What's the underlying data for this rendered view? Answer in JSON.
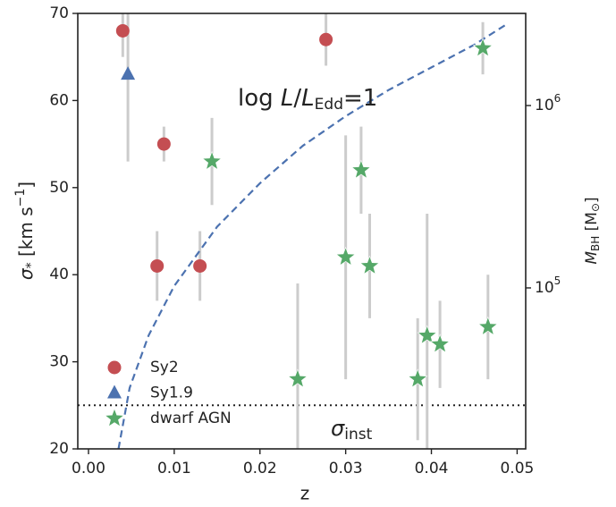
{
  "chart_data": {
    "type": "scatter",
    "xlabel": "z",
    "ylabel": [
      "σ",
      "*",
      " [km s",
      "−1",
      "]"
    ],
    "y2label": [
      "M",
      "BH",
      " [M",
      "⊙",
      "]"
    ],
    "xlim": [
      -0.00125,
      0.051
    ],
    "xticks": [
      {
        "value": 0,
        "label": "0.00"
      },
      {
        "value": 0.01,
        "label": "0.01"
      },
      {
        "value": 0.02,
        "label": "0.02"
      },
      {
        "value": 0.03,
        "label": "0.03"
      },
      {
        "value": 0.04,
        "label": "0.04"
      },
      {
        "value": 0.05,
        "label": "0.05"
      }
    ],
    "ylim": [
      20,
      70
    ],
    "yticks": [
      20,
      30,
      40,
      50,
      60,
      70
    ],
    "y2_log": true,
    "y2lim": [
      13100,
      3200000
    ],
    "y2ticks": [
      {
        "value": 100000,
        "label": "10",
        "exponent": "5"
      },
      {
        "value": 1000000,
        "label": "10",
        "exponent": "6"
      }
    ],
    "error_color": "#cccccc",
    "series": [
      {
        "name": "Sy2",
        "color": "#c44e52",
        "marker": "circle",
        "x": [
          0.004,
          0.0088,
          0.008,
          0.013,
          0.0277
        ],
        "values": [
          68,
          55,
          41,
          41,
          67
        ],
        "errors": [
          3,
          2,
          4,
          4,
          3
        ]
      },
      {
        "name": "Sy1.9",
        "color": "#4c72b0",
        "marker": "triangle",
        "x": [
          0.0046
        ],
        "values": [
          63
        ],
        "errors": [
          10
        ]
      },
      {
        "name": "dwarf AGN",
        "color": "#55a868",
        "marker": "star",
        "x": [
          0.0144,
          0.0244,
          0.03,
          0.0318,
          0.0328,
          0.0384,
          0.0395,
          0.041,
          0.0466,
          0.046
        ],
        "values": [
          53,
          28,
          42,
          52,
          41,
          28,
          33,
          32,
          34,
          66
        ],
        "errors": [
          5,
          11,
          14,
          5,
          6,
          7,
          14,
          5,
          6,
          3
        ]
      }
    ],
    "curve": {
      "color": "#4c72b0",
      "label": [
        "log ",
        "L",
        "/",
        "L",
        "Edd",
        "=1"
      ],
      "x": [
        0.0035,
        0.0048,
        0.007,
        0.01,
        0.015,
        0.02,
        0.025,
        0.03,
        0.035,
        0.04,
        0.045,
        0.049
      ],
      "values": [
        20,
        27,
        33,
        38.7,
        45.5,
        50.5,
        54.8,
        58.2,
        61.2,
        63.8,
        66.4,
        68.9
      ]
    },
    "hline": {
      "value": 25,
      "color": "#222222",
      "label": [
        "σ",
        "inst"
      ]
    }
  }
}
